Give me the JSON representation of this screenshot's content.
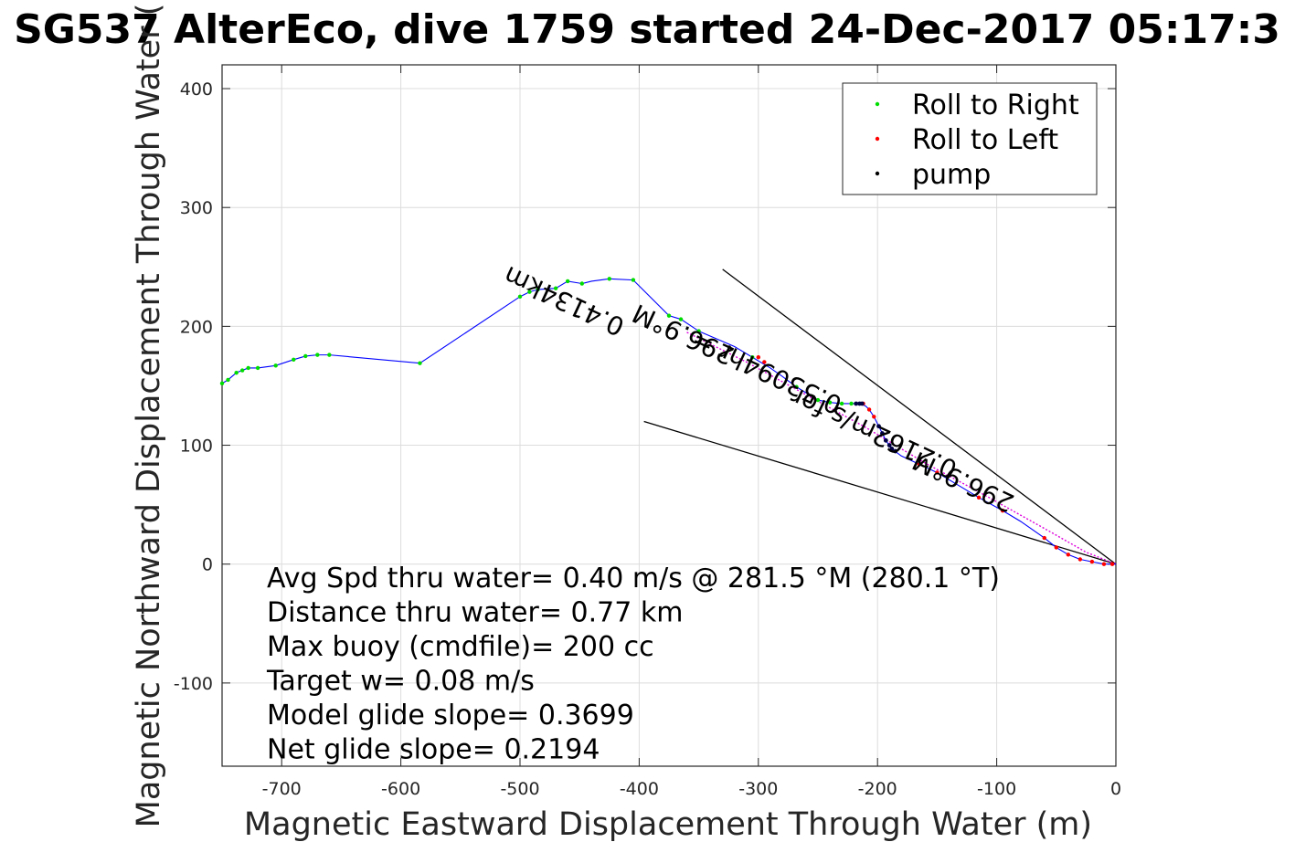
{
  "chart_data": {
    "type": "line",
    "title": "SG537 AlterEco, dive 1759 started 24-Dec-2017 05:17:3",
    "xlabel": "Magnetic Eastward Displacement Through Water (m)",
    "ylabel": "Magnetic Northward Displacement Through Water (",
    "xlim": [
      -750,
      0
    ],
    "ylim": [
      -170,
      420
    ],
    "xticks": [
      -700,
      -600,
      -500,
      -400,
      -300,
      -200,
      -100,
      0
    ],
    "yticks": [
      400,
      300,
      200,
      100,
      0,
      -100
    ],
    "xtick_labels": [
      "-700",
      "-600",
      "-500",
      "-400",
      "-300",
      "-200",
      "-100",
      "0"
    ],
    "ytick_labels": [
      "400",
      "300",
      "200",
      "100",
      "0",
      "-100"
    ],
    "grid": true,
    "legend_position": "top-right",
    "colors": {
      "track": "#0000ff",
      "roll_right": "#00dd00",
      "roll_left": "#ff0000",
      "pump": "#000044",
      "guide": "#000000",
      "magenta": "#dd00dd"
    },
    "legend": [
      {
        "label": "Roll to Right",
        "color": "#00dd00"
      },
      {
        "label": "Roll to Left",
        "color": "#ff0000"
      },
      {
        "label": "pump",
        "color": "#000000"
      }
    ],
    "track": {
      "x": [
        -750,
        -745,
        -738,
        -733,
        -728,
        -720,
        -705,
        -690,
        -680,
        -670,
        -660,
        -584,
        -500,
        -492,
        -485,
        -470,
        -460,
        -448,
        -440,
        -425,
        -405,
        -375,
        -365,
        -350,
        -320,
        -305,
        -290,
        -280,
        -268,
        -250,
        -240,
        -230,
        -222,
        -215,
        -210,
        -207,
        -203,
        -199,
        -196,
        -193,
        -188,
        -180,
        -165,
        -150,
        -135,
        -115,
        -95,
        -80,
        -60,
        -50,
        -40,
        -30,
        -20,
        -10,
        0
      ],
      "y": [
        152,
        155,
        161,
        163,
        165,
        165,
        167,
        172,
        175,
        176,
        176,
        169,
        225,
        229,
        231,
        232,
        238,
        236,
        238,
        240,
        239,
        209,
        206,
        196,
        183,
        174,
        165,
        158,
        149,
        138,
        136,
        135,
        135,
        135,
        133,
        130,
        124,
        116,
        110,
        104,
        97,
        91,
        84,
        77,
        68,
        56,
        45,
        36,
        22,
        14,
        8,
        4,
        2,
        0,
        0
      ]
    },
    "roll_right_points": {
      "x": [
        -750,
        -745,
        -738,
        -733,
        -728,
        -720,
        -705,
        -690,
        -680,
        -670,
        -660,
        -584,
        -500,
        -492,
        -485,
        -470,
        -460,
        -448,
        -425,
        -405,
        -375,
        -365,
        -350,
        -305,
        -268,
        -250,
        -240,
        -230,
        -222
      ],
      "y": [
        152,
        155,
        161,
        163,
        165,
        165,
        167,
        172,
        175,
        176,
        176,
        169,
        225,
        229,
        231,
        232,
        238,
        236,
        240,
        239,
        209,
        206,
        196,
        174,
        149,
        138,
        136,
        135,
        135
      ]
    },
    "roll_left_points": {
      "x": [
        -300,
        -295,
        -212,
        -207,
        -203,
        -165,
        -150,
        -115,
        -95,
        -60,
        -50,
        -40,
        -30,
        -20,
        -10,
        -3
      ],
      "y": [
        174,
        170,
        135,
        130,
        124,
        84,
        77,
        56,
        45,
        22,
        14,
        8,
        4,
        2,
        0,
        0
      ]
    },
    "pump_points": {
      "x": [
        -218,
        -215,
        -213,
        -199,
        -196,
        -193,
        -190,
        -188,
        -185
      ],
      "y": [
        135,
        135,
        135,
        116,
        110,
        104,
        100,
        97,
        95
      ]
    },
    "magenta_path": {
      "x": [
        -360,
        -310,
        -270,
        -210,
        -160,
        -110,
        -60,
        -25,
        0
      ],
      "y": [
        195,
        170,
        148,
        115,
        85,
        58,
        30,
        10,
        0
      ]
    },
    "guide_lines": [
      {
        "x": [
          -330,
          0
        ],
        "y": [
          248,
          0
        ]
      },
      {
        "x": [
          -396,
          0
        ],
        "y": [
          120,
          0
        ]
      }
    ],
    "annotations": [
      {
        "text": "0.4134km",
        "anchor_x": -460,
        "anchor_y": 228,
        "rotation": 25
      },
      {
        "text": "296.9°M",
        "anchor_x": -360,
        "anchor_y": 200,
        "rotation": 25
      },
      {
        "text": "0.53094hr =",
        "anchor_x": -290,
        "anchor_y": 168,
        "rotation": 25
      },
      {
        "text": "0.2162m/s for",
        "anchor_x": -200,
        "anchor_y": 117,
        "rotation": 25
      },
      {
        "text": "296.9°M",
        "anchor_x": -125,
        "anchor_y": 76,
        "rotation": 25
      }
    ],
    "text_block": [
      "Avg Spd thru water=  0.40 m/s @ 281.5 °M (280.1 °T)",
      "Distance thru water=  0.77 km",
      "Max buoy (cmdfile)= 200 cc",
      "Target w= 0.08 m/s",
      "Model glide slope= 0.3699",
      "Net glide slope= 0.2194"
    ]
  }
}
